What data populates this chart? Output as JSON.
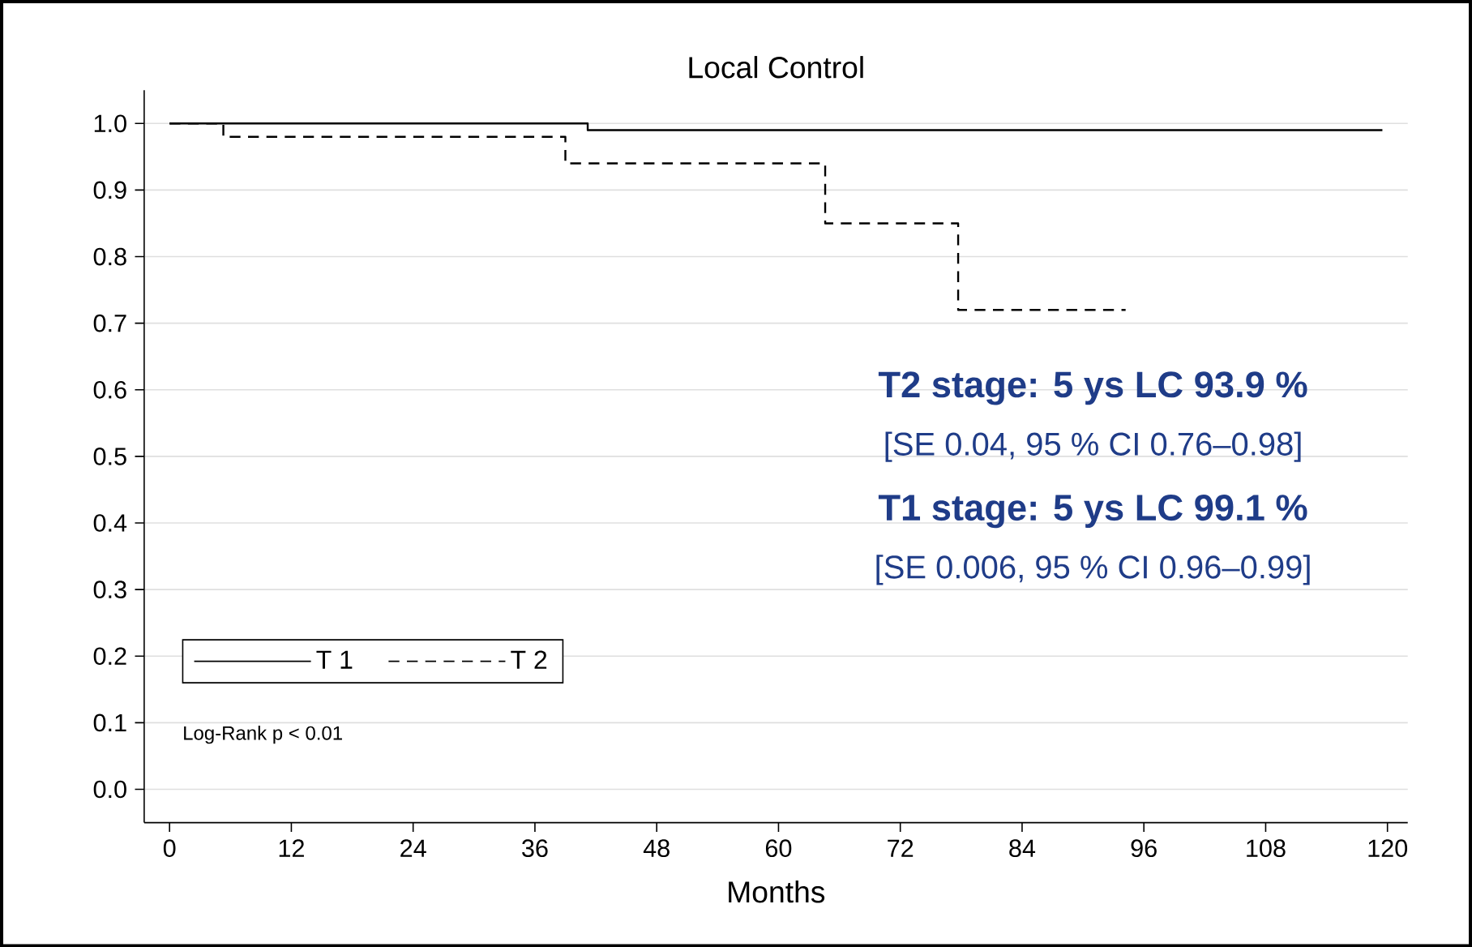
{
  "chart_data": {
    "type": "step",
    "title": "Local Control",
    "xlabel": "Months",
    "xlim": [
      -2.5,
      122
    ],
    "ylim": [
      -0.05,
      1.05
    ],
    "xticks": [
      0,
      12,
      24,
      36,
      48,
      60,
      72,
      84,
      96,
      108,
      120
    ],
    "yticks": [
      {
        "value": 0,
        "label": "0.0"
      },
      {
        "value": 0.1,
        "label": "0.1"
      },
      {
        "value": 0.2,
        "label": "0.2"
      },
      {
        "value": 0.3,
        "label": "0.3"
      },
      {
        "value": 0.4,
        "label": "0.4"
      },
      {
        "value": 0.5,
        "label": "0.5"
      },
      {
        "value": 0.6,
        "label": "0.6"
      },
      {
        "value": 0.7,
        "label": "0.7"
      },
      {
        "value": 0.8,
        "label": "0.8"
      },
      {
        "value": 0.9,
        "label": "0.9"
      },
      {
        "value": 1,
        "label": "1.0"
      }
    ],
    "grid": "y",
    "legend": "bottom left",
    "marker": "none",
    "series": [
      {
        "name": "T 1",
        "color": "#000000",
        "line_style": "solid",
        "x": [
          0,
          41.2,
          119.5
        ],
        "values": [
          1.0,
          0.99,
          0.99
        ]
      },
      {
        "name": "T 2",
        "color": "#000000",
        "line_style": "dashed",
        "x": [
          0,
          5.3,
          39,
          64.6,
          77.7,
          94.2
        ],
        "values": [
          1.0,
          0.98,
          0.94,
          0.85,
          0.72,
          0.72
        ]
      }
    ],
    "annotations": [
      "T2 stage: 5 ys LC 93.9 %",
      "[SE 0.04, 95 % CI 0.76–0.98]",
      "T1 stage: 5 ys LC 99.1 %",
      "[SE 0.006, 95 % CI 0.96–0.99]",
      "Log-Rank p < 0.01"
    ]
  }
}
